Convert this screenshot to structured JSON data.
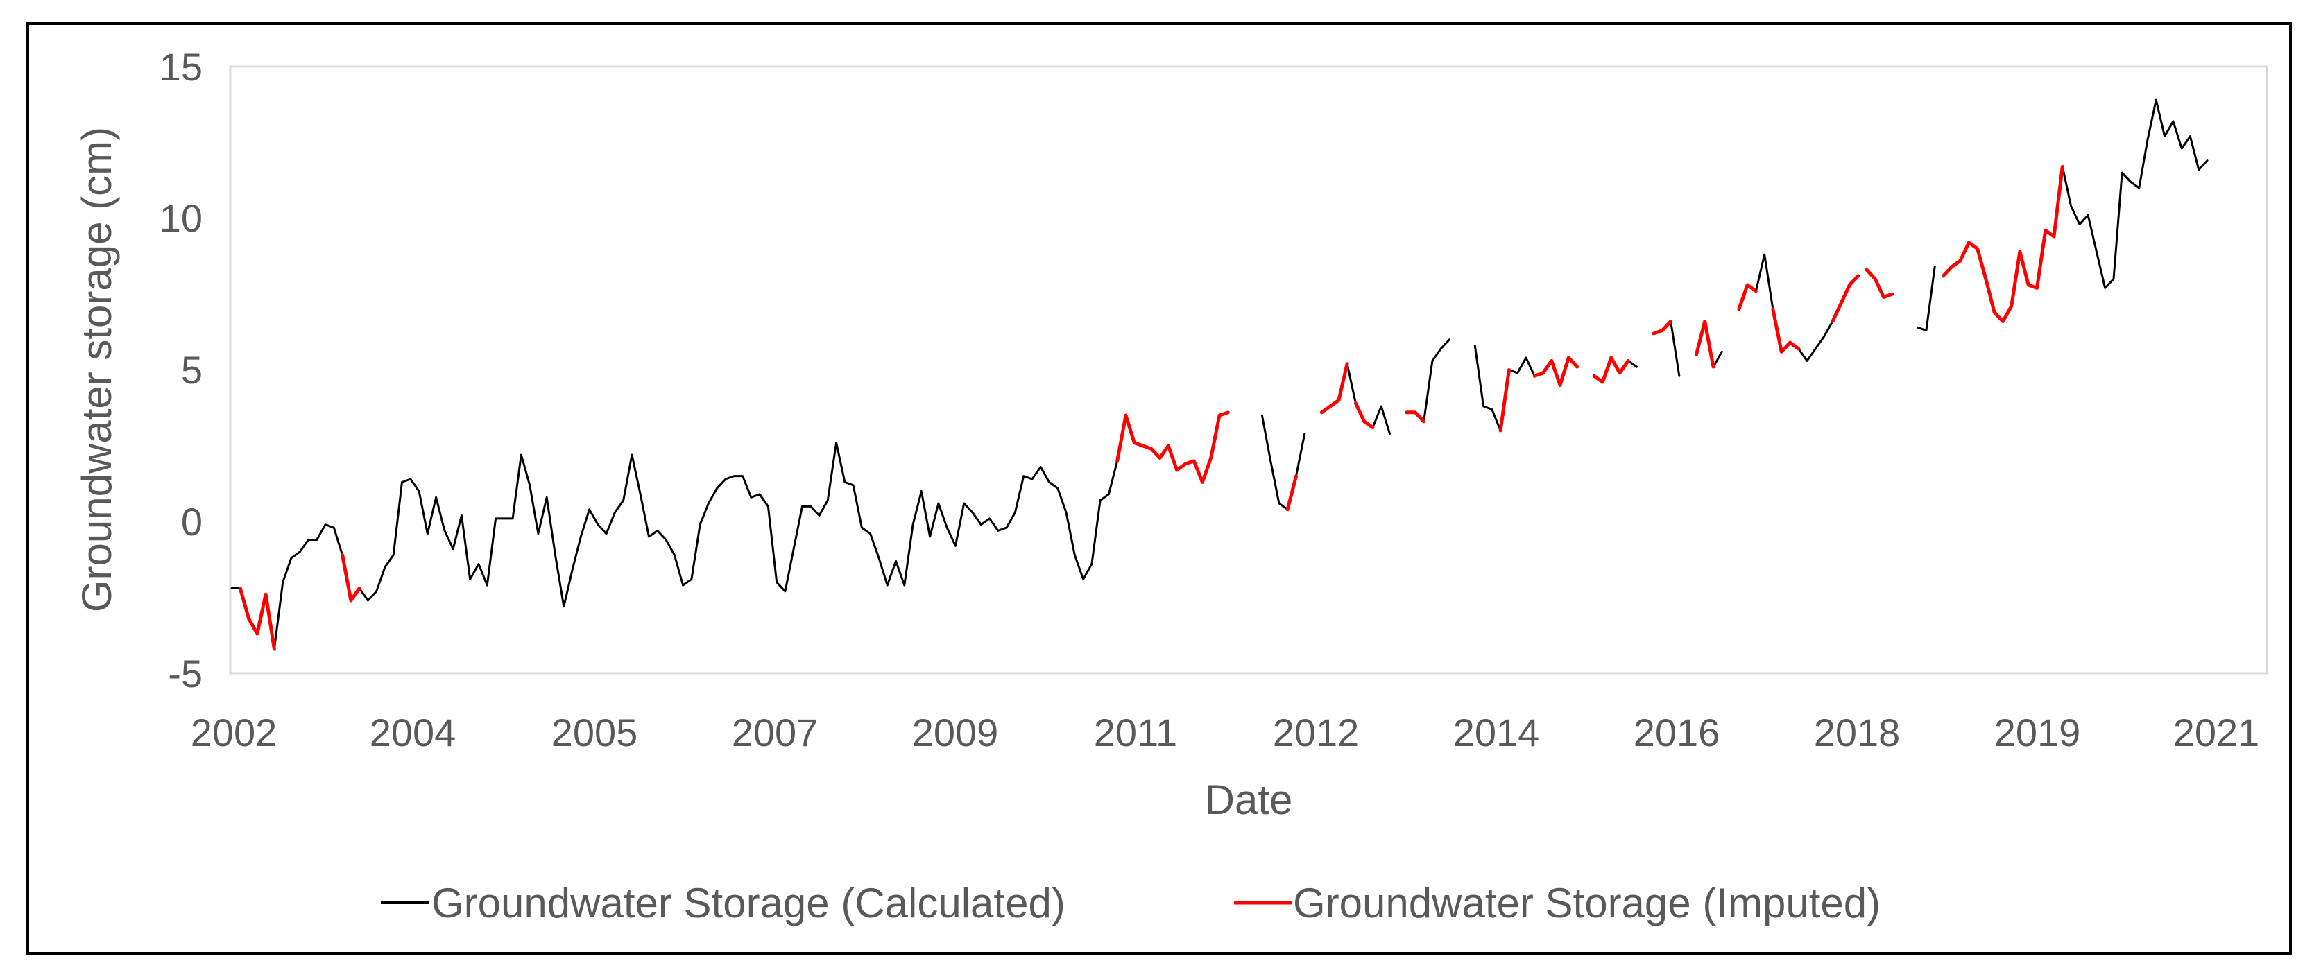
{
  "chart_data": {
    "type": "line",
    "title": "",
    "xlabel": "Date",
    "ylabel": "Groundwater storage (cm)",
    "ylim": [
      -5,
      15
    ],
    "y_ticks": [
      "15",
      "10",
      "5",
      "0",
      "-5"
    ],
    "x_tick_labels": [
      "2002",
      "2004",
      "2005",
      "2007",
      "2009",
      "2011",
      "2012",
      "2014",
      "2016",
      "2018",
      "2019",
      "2021"
    ],
    "grid": false,
    "legend_position": "bottom",
    "series": [
      {
        "name": "Groundwater Storage (Calculated)",
        "color": "#000000",
        "values": [
          -2.2,
          -2.2,
          -3.2,
          -3.7,
          -2.4,
          -4.2,
          -2.0,
          -1.2,
          -1.0,
          -0.6,
          -0.6,
          -0.1,
          -0.2,
          -1.1,
          -2.6,
          -2.2,
          -2.6,
          -2.3,
          -1.5,
          -1.1,
          1.3,
          1.4,
          1.0,
          -0.4,
          0.8,
          -0.3,
          -0.9,
          0.2,
          -1.9,
          -1.4,
          -2.1,
          0.1,
          0.1,
          0.1,
          2.2,
          1.2,
          -0.4,
          0.8,
          -1.1,
          -2.8,
          -1.6,
          -0.5,
          0.4,
          -0.1,
          -0.4,
          0.3,
          0.7,
          2.2,
          0.9,
          -0.5,
          -0.3,
          -0.6,
          -1.1,
          -2.1,
          -1.9,
          -0.1,
          0.6,
          1.1,
          1.4,
          1.5,
          1.5,
          0.8,
          0.9,
          0.5,
          -2.0,
          -2.3,
          -0.9,
          0.5,
          0.5,
          0.2,
          0.7,
          2.6,
          1.3,
          1.2,
          -0.2,
          -0.4,
          -1.2,
          -2.1,
          -1.3,
          -2.1,
          -0.1,
          1.0,
          -0.5,
          0.6,
          -0.2,
          -0.8,
          0.6,
          0.3,
          -0.1,
          0.1,
          -0.3,
          -0.2,
          0.3,
          1.5,
          1.4,
          1.8,
          1.3,
          1.1,
          0.3,
          -1.1,
          -1.9,
          -1.4,
          0.7,
          0.9,
          2.0,
          3.5,
          2.6,
          2.5,
          2.4,
          2.1,
          2.5,
          1.7,
          1.9,
          2.0,
          1.3,
          2.1,
          3.5,
          3.6,
          3.3,
          3.9,
          4.5,
          3.5,
          2.0,
          0.6,
          0.4,
          1.5,
          2.9,
          2.6,
          3.6,
          3.8,
          4.0,
          5.2,
          3.9,
          3.3,
          3.1,
          3.8,
          2.9,
          3.2,
          3.6,
          3.6,
          3.3,
          5.3,
          5.7,
          6.0,
          5.6,
          5.1,
          5.8,
          3.8,
          3.7,
          3.0,
          5.0,
          4.9,
          5.4,
          4.8,
          4.9,
          5.3,
          4.5,
          5.4,
          5.1,
          4.5,
          4.8,
          4.6,
          5.4,
          4.9,
          5.3,
          5.1,
          6.7,
          6.2,
          6.3,
          6.6,
          4.8,
          5.9,
          5.5,
          6.6,
          5.1,
          5.6,
          7.1,
          7.0,
          7.8,
          7.6,
          8.8,
          7.0,
          5.6,
          5.9,
          5.7,
          5.3,
          5.7,
          6.1,
          6.6,
          7.2,
          7.8,
          8.1,
          8.3,
          8.0,
          7.4,
          7.5,
          6.6,
          6.0,
          6.4,
          6.3,
          8.4,
          8.1,
          8.4,
          8.6,
          9.2,
          9.0,
          8.0,
          6.9,
          6.6,
          7.1,
          8.9,
          7.8,
          7.7,
          9.6,
          9.4,
          11.7,
          10.4,
          9.8,
          10.1,
          8.9,
          7.7,
          8.0,
          11.5,
          11.2,
          11.0,
          12.6,
          13.9,
          12.7,
          13.2,
          12.3,
          12.7,
          11.6,
          11.9
        ],
        "segments": [
          [
            0,
            2
          ],
          [
            5,
            13
          ],
          [
            15,
            108
          ],
          [
            121,
            126
          ],
          [
            131,
            132
          ],
          [
            134,
            136
          ],
          [
            139,
            143
          ],
          [
            146,
            154
          ],
          [
            156,
            157
          ],
          [
            160,
            161
          ],
          [
            163,
            165
          ],
          [
            167,
            170
          ],
          [
            172,
            175
          ],
          [
            177,
            181
          ],
          [
            184,
            188
          ],
          [
            190,
            191
          ],
          [
            198,
            200
          ],
          [
            204,
            210
          ],
          [
            212,
            213
          ],
          [
            213,
            232
          ]
        ]
      },
      {
        "name": "Groundwater Storage (Imputed)",
        "color": "#ff0000",
        "values": [
          -2.2,
          -2.2,
          -3.2,
          -3.7,
          -2.4,
          -4.2,
          -2.0,
          -1.2,
          -1.0,
          -0.6,
          -0.6,
          -0.1,
          -0.2,
          -1.1,
          -2.6,
          -2.2,
          -2.6,
          -2.3,
          -1.5,
          -1.1,
          1.3,
          1.4,
          1.0,
          -0.4,
          0.8,
          -0.3,
          -0.9,
          0.2,
          -1.9,
          -1.4,
          -2.1,
          0.1,
          0.1,
          0.1,
          2.2,
          1.2,
          -0.4,
          0.8,
          -1.1,
          -2.8,
          -1.6,
          -0.5,
          0.4,
          -0.1,
          -0.4,
          0.3,
          0.7,
          2.2,
          0.9,
          -0.5,
          -0.3,
          -0.6,
          -1.1,
          -2.1,
          -1.9,
          -0.1,
          0.6,
          1.1,
          1.4,
          1.5,
          1.5,
          0.8,
          0.9,
          0.5,
          -2.0,
          -2.3,
          -0.9,
          0.5,
          0.5,
          0.2,
          0.7,
          2.6,
          1.3,
          1.2,
          -0.2,
          -0.4,
          -1.2,
          -2.1,
          -1.3,
          -2.1,
          -0.1,
          1.0,
          -0.5,
          0.6,
          -0.2,
          -0.8,
          0.6,
          0.3,
          -0.1,
          0.1,
          -0.3,
          -0.2,
          0.3,
          1.5,
          1.4,
          1.8,
          1.3,
          1.1,
          0.3,
          -1.1,
          -1.9,
          -1.4,
          0.7,
          0.9,
          2.0,
          3.5,
          2.6,
          2.5,
          2.4,
          2.1,
          2.5,
          1.7,
          1.9,
          2.0,
          1.3,
          2.1,
          3.5,
          3.6,
          3.3,
          3.9,
          4.5,
          3.5,
          2.0,
          0.6,
          0.4,
          1.5,
          2.9,
          2.6,
          3.6,
          3.8,
          4.0,
          5.2,
          3.9,
          3.3,
          3.1,
          3.8,
          2.9,
          3.2,
          3.6,
          3.6,
          3.3,
          5.3,
          5.7,
          6.0,
          5.6,
          5.1,
          5.8,
          3.8,
          3.7,
          3.0,
          5.0,
          4.9,
          5.4,
          4.8,
          4.9,
          5.3,
          4.5,
          5.4,
          5.1,
          4.5,
          4.8,
          4.6,
          5.4,
          4.9,
          5.3,
          5.1,
          6.7,
          6.2,
          6.3,
          6.6,
          4.8,
          5.9,
          5.5,
          6.6,
          5.1,
          5.6,
          7.1,
          7.0,
          7.8,
          7.6,
          8.8,
          7.0,
          5.6,
          5.9,
          5.7,
          5.3,
          5.7,
          6.1,
          6.6,
          7.2,
          7.8,
          8.1,
          8.3,
          8.0,
          7.4,
          7.5,
          6.6,
          6.0,
          6.4,
          6.3,
          8.4,
          8.1,
          8.4,
          8.6,
          9.2,
          9.0,
          8.0,
          6.9,
          6.6,
          7.1,
          8.9,
          7.8,
          7.7,
          9.6,
          9.4,
          11.7,
          10.4,
          9.8,
          10.1,
          8.9,
          7.7,
          8.0,
          11.5,
          11.2,
          11.0,
          12.6,
          13.9,
          12.7,
          13.2,
          12.3,
          12.7,
          11.6,
          11.9
        ],
        "segments": [
          [
            1,
            5
          ],
          [
            13,
            15
          ],
          [
            104,
            117
          ],
          [
            124,
            125
          ],
          [
            128,
            131
          ],
          [
            132,
            134
          ],
          [
            138,
            140
          ],
          [
            149,
            150
          ],
          [
            153,
            158
          ],
          [
            160,
            164
          ],
          [
            167,
            169
          ],
          [
            172,
            174
          ],
          [
            177,
            179
          ],
          [
            181,
            184
          ],
          [
            188,
            191
          ],
          [
            192,
            195
          ],
          [
            201,
            215
          ]
        ]
      }
    ]
  }
}
